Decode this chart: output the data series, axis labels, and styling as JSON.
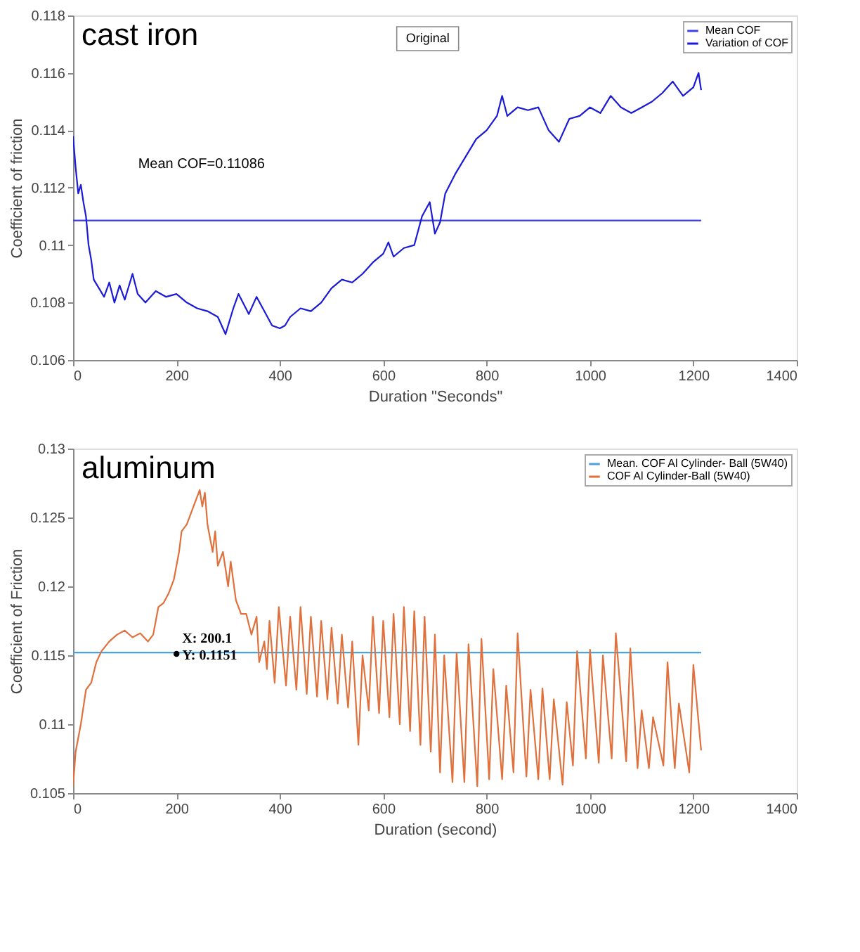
{
  "chart_data": [
    {
      "type": "line",
      "title": "cast iron",
      "xlabel": "Duration \"Seconds\"",
      "ylabel": "Coefficient of friction",
      "xlim": [
        0,
        1400
      ],
      "xticks": [
        0,
        200,
        400,
        600,
        800,
        1000,
        1200,
        1400
      ],
      "ylim": [
        0.106,
        0.118
      ],
      "yticks": [
        0.106,
        0.108,
        0.11,
        0.112,
        0.114,
        0.116,
        0.118
      ],
      "legend": "top right",
      "grid": false,
      "annotations": [
        "Mean COF=0.11086",
        "Original"
      ],
      "series": [
        {
          "name": "Mean COF",
          "color": "#3f3fe6",
          "x": [
            0,
            1215
          ],
          "values": [
            0.11086,
            0.11086
          ]
        },
        {
          "name": "Variation of COF",
          "color": "#1a1ad8",
          "x": [
            0,
            5,
            10,
            15,
            20,
            25,
            30,
            35,
            40,
            50,
            60,
            70,
            80,
            90,
            100,
            115,
            125,
            140,
            160,
            180,
            200,
            220,
            240,
            260,
            280,
            295,
            310,
            320,
            340,
            355,
            370,
            385,
            400,
            410,
            420,
            440,
            460,
            480,
            500,
            520,
            540,
            560,
            580,
            600,
            610,
            620,
            640,
            660,
            675,
            690,
            700,
            710,
            720,
            740,
            760,
            780,
            800,
            820,
            830,
            840,
            860,
            880,
            900,
            920,
            940,
            960,
            980,
            1000,
            1020,
            1040,
            1060,
            1080,
            1100,
            1120,
            1140,
            1160,
            1180,
            1200,
            1210,
            1215
          ],
          "values": [
            0.1138,
            0.1127,
            0.1118,
            0.1121,
            0.1115,
            0.111,
            0.11,
            0.1095,
            0.1088,
            0.1085,
            0.1082,
            0.1087,
            0.108,
            0.1086,
            0.1081,
            0.109,
            0.1083,
            0.108,
            0.1084,
            0.1082,
            0.1083,
            0.108,
            0.1078,
            0.1077,
            0.1075,
            0.1069,
            0.1078,
            0.1083,
            0.1076,
            0.1082,
            0.1077,
            0.1072,
            0.1071,
            0.1072,
            0.1075,
            0.1078,
            0.1077,
            0.108,
            0.1085,
            0.1088,
            0.1087,
            0.109,
            0.1094,
            0.1097,
            0.1101,
            0.1096,
            0.1099,
            0.11,
            0.111,
            0.1115,
            0.1104,
            0.1108,
            0.1118,
            0.1125,
            0.1131,
            0.1137,
            0.114,
            0.1145,
            0.1152,
            0.1145,
            0.1148,
            0.1147,
            0.1148,
            0.114,
            0.1136,
            0.1144,
            0.1145,
            0.1148,
            0.1146,
            0.1152,
            0.1148,
            0.1146,
            0.1148,
            0.115,
            0.1153,
            0.1157,
            0.1152,
            0.1155,
            0.116,
            0.1154
          ]
        }
      ]
    },
    {
      "type": "line",
      "title": "aluminum",
      "xlabel": "Duration (second)",
      "ylabel": "Coefficient of Friction",
      "xlim": [
        0,
        1400
      ],
      "xticks": [
        0,
        200,
        400,
        600,
        800,
        1000,
        1200,
        1400
      ],
      "ylim": [
        0.105,
        0.13
      ],
      "yticks": [
        0.105,
        0.11,
        0.115,
        0.12,
        0.125,
        0.13
      ],
      "legend": "top right",
      "grid": false,
      "annotations": [
        {
          "text": "X: 200.1\nY: 0.1151",
          "x": 200.1,
          "y": 0.1151
        }
      ],
      "series": [
        {
          "name": "Mean. COF Al Cylinder- Ball (5W40)",
          "color": "#4aa3df",
          "x": [
            0,
            1215
          ],
          "values": [
            0.1152,
            0.1152
          ]
        },
        {
          "name": "COF Al Cylinder-Ball (5W40)",
          "color": "#e0703c",
          "x": [
            0,
            5,
            15,
            25,
            35,
            45,
            55,
            70,
            85,
            100,
            115,
            130,
            145,
            155,
            160,
            165,
            175,
            185,
            195,
            205,
            210,
            220,
            230,
            240,
            245,
            250,
            255,
            260,
            270,
            275,
            280,
            290,
            300,
            305,
            315,
            325,
            335,
            345,
            355,
            360,
            370,
            375,
            380,
            390,
            398,
            412,
            420,
            432,
            440,
            452,
            460,
            472,
            480,
            492,
            500,
            512,
            520,
            532,
            540,
            552,
            560,
            572,
            580,
            592,
            600,
            612,
            620,
            632,
            640,
            652,
            660,
            672,
            680,
            692,
            700,
            710,
            718,
            734,
            742,
            757,
            765,
            782,
            790,
            805,
            813,
            830,
            838,
            852,
            860,
            877,
            885,
            900,
            908,
            922,
            930,
            947,
            955,
            967,
            975,
            992,
            1000,
            1017,
            1025,
            1042,
            1050,
            1070,
            1078,
            1092,
            1100,
            1114,
            1122,
            1142,
            1150,
            1164,
            1172,
            1192,
            1200,
            1215
          ],
          "values": [
            0.1055,
            0.108,
            0.11,
            0.1125,
            0.113,
            0.1145,
            0.1153,
            0.116,
            0.1165,
            0.1168,
            0.1163,
            0.1166,
            0.116,
            0.1165,
            0.1175,
            0.1185,
            0.1188,
            0.1195,
            0.1205,
            0.1225,
            0.124,
            0.1245,
            0.1255,
            0.1265,
            0.127,
            0.1258,
            0.1268,
            0.1245,
            0.1225,
            0.124,
            0.1215,
            0.1225,
            0.12,
            0.1218,
            0.119,
            0.118,
            0.118,
            0.1165,
            0.1178,
            0.1145,
            0.116,
            0.114,
            0.1175,
            0.113,
            0.1185,
            0.1128,
            0.1178,
            0.1125,
            0.1185,
            0.1122,
            0.1178,
            0.112,
            0.1175,
            0.1118,
            0.117,
            0.1115,
            0.1165,
            0.1112,
            0.116,
            0.1085,
            0.115,
            0.111,
            0.1178,
            0.1108,
            0.1175,
            0.1105,
            0.118,
            0.11,
            0.1185,
            0.1095,
            0.1182,
            0.1085,
            0.1178,
            0.108,
            0.1165,
            0.1065,
            0.115,
            0.1058,
            0.1152,
            0.1058,
            0.1158,
            0.1055,
            0.1162,
            0.106,
            0.114,
            0.106,
            0.1128,
            0.1065,
            0.1166,
            0.1062,
            0.1125,
            0.106,
            0.1126,
            0.106,
            0.1118,
            0.1056,
            0.1116,
            0.107,
            0.1153,
            0.1075,
            0.1154,
            0.1072,
            0.115,
            0.1075,
            0.1166,
            0.1073,
            0.1155,
            0.1068,
            0.111,
            0.1068,
            0.1105,
            0.107,
            0.1145,
            0.1068,
            0.1115,
            0.1065,
            0.1143,
            0.1081
          ]
        }
      ]
    }
  ]
}
